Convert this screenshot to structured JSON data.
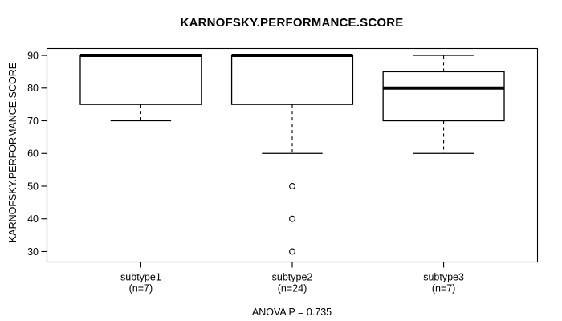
{
  "colors": {
    "foreground": "#000000",
    "background": "#ffffff",
    "box_fill": "#ffffff"
  },
  "chart_data": {
    "type": "boxplot",
    "title": "KARNOFSKY.PERFORMANCE.SCORE",
    "ylabel": "KARNOFSKY.PERFORMANCE.SCORE",
    "xlabel": "",
    "annotation": "ANOVA P = 0.735",
    "grid": false,
    "yticks": [
      30,
      40,
      50,
      60,
      70,
      80,
      90
    ],
    "ylim": [
      26.8,
      92.1
    ],
    "groups": [
      {
        "label": "subtype1",
        "sublabel": "(n=7)",
        "whisker_low": 70,
        "q1": 75,
        "median": 90,
        "q3": 90,
        "whisker_high": 90,
        "outliers": []
      },
      {
        "label": "subtype2",
        "sublabel": "(n=24)",
        "whisker_low": 60,
        "q1": 75,
        "median": 90,
        "q3": 90,
        "whisker_high": 90,
        "outliers": [
          50,
          40,
          30
        ]
      },
      {
        "label": "subtype3",
        "sublabel": "(n=7)",
        "whisker_low": 60,
        "q1": 70,
        "median": 80,
        "q3": 85,
        "whisker_high": 90,
        "outliers": []
      }
    ]
  }
}
